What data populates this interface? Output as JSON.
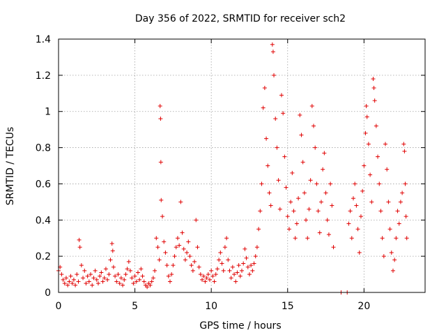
{
  "chart_data": {
    "type": "scatter",
    "title": "Day 356 of 2022, SRMTID for receiver sch2",
    "xlabel": "GPS time / hours",
    "ylabel": "SRMTID / TECUs",
    "xlim": [
      0,
      24
    ],
    "ylim": [
      0,
      1.4
    ],
    "xticks": [
      0,
      5,
      10,
      15,
      20
    ],
    "xtick_labels": [
      "0",
      "5",
      "10",
      "15",
      "20"
    ],
    "yticks": [
      0,
      0.2,
      0.4,
      0.6,
      0.8,
      1,
      1.2,
      1.4
    ],
    "ytick_labels": [
      "0",
      "0.2",
      "0.4",
      "0.6",
      "0.8",
      "1",
      "1.2",
      "1.4"
    ],
    "grid": true,
    "marker": "+",
    "color": "#e00000",
    "series": [
      {
        "name": "sch2",
        "points": [
          [
            0.0,
            0.12
          ],
          [
            0.1,
            0.14
          ],
          [
            0.2,
            0.1
          ],
          [
            0.3,
            0.07
          ],
          [
            0.4,
            0.05
          ],
          [
            0.5,
            0.08
          ],
          [
            0.6,
            0.04
          ],
          [
            0.7,
            0.06
          ],
          [
            0.8,
            0.09
          ],
          [
            0.9,
            0.05
          ],
          [
            1.0,
            0.07
          ],
          [
            1.1,
            0.04
          ],
          [
            1.2,
            0.1
          ],
          [
            1.3,
            0.06
          ],
          [
            1.35,
            0.29
          ],
          [
            1.4,
            0.25
          ],
          [
            1.5,
            0.15
          ],
          [
            1.6,
            0.08
          ],
          [
            1.7,
            0.12
          ],
          [
            1.8,
            0.05
          ],
          [
            1.9,
            0.09
          ],
          [
            2.0,
            0.06
          ],
          [
            2.1,
            0.1
          ],
          [
            2.2,
            0.04
          ],
          [
            2.3,
            0.08
          ],
          [
            2.4,
            0.12
          ],
          [
            2.5,
            0.07
          ],
          [
            2.6,
            0.05
          ],
          [
            2.7,
            0.09
          ],
          [
            2.8,
            0.11
          ],
          [
            2.9,
            0.06
          ],
          [
            3.0,
            0.08
          ],
          [
            3.1,
            0.13
          ],
          [
            3.2,
            0.07
          ],
          [
            3.3,
            0.1
          ],
          [
            3.4,
            0.18
          ],
          [
            3.5,
            0.27
          ],
          [
            3.55,
            0.23
          ],
          [
            3.6,
            0.14
          ],
          [
            3.7,
            0.09
          ],
          [
            3.8,
            0.06
          ],
          [
            3.9,
            0.1
          ],
          [
            4.0,
            0.05
          ],
          [
            4.1,
            0.08
          ],
          [
            4.2,
            0.04
          ],
          [
            4.3,
            0.07
          ],
          [
            4.4,
            0.1
          ],
          [
            4.5,
            0.13
          ],
          [
            4.6,
            0.17
          ],
          [
            4.7,
            0.12
          ],
          [
            4.8,
            0.08
          ],
          [
            4.9,
            0.05
          ],
          [
            5.0,
            0.09
          ],
          [
            5.1,
            0.06
          ],
          [
            5.2,
            0.11
          ],
          [
            5.3,
            0.07
          ],
          [
            5.4,
            0.13
          ],
          [
            5.5,
            0.09
          ],
          [
            5.6,
            0.06
          ],
          [
            5.7,
            0.04
          ],
          [
            5.8,
            0.03
          ],
          [
            5.9,
            0.05
          ],
          [
            6.0,
            0.04
          ],
          [
            6.1,
            0.06
          ],
          [
            6.2,
            0.08
          ],
          [
            6.3,
            0.12
          ],
          [
            6.4,
            0.3
          ],
          [
            6.5,
            0.25
          ],
          [
            6.6,
            0.18
          ],
          [
            6.65,
            1.03
          ],
          [
            6.68,
            0.96
          ],
          [
            6.7,
            0.72
          ],
          [
            6.72,
            0.51
          ],
          [
            6.8,
            0.42
          ],
          [
            6.9,
            0.28
          ],
          [
            7.0,
            0.22
          ],
          [
            7.1,
            0.15
          ],
          [
            7.2,
            0.09
          ],
          [
            7.3,
            0.06
          ],
          [
            7.4,
            0.1
          ],
          [
            7.5,
            0.15
          ],
          [
            7.6,
            0.2
          ],
          [
            7.7,
            0.25
          ],
          [
            7.8,
            0.3
          ],
          [
            7.9,
            0.26
          ],
          [
            8.0,
            0.5
          ],
          [
            8.1,
            0.33
          ],
          [
            8.2,
            0.24
          ],
          [
            8.3,
            0.18
          ],
          [
            8.4,
            0.22
          ],
          [
            8.5,
            0.28
          ],
          [
            8.6,
            0.2
          ],
          [
            8.7,
            0.15
          ],
          [
            8.8,
            0.12
          ],
          [
            8.9,
            0.17
          ],
          [
            9.0,
            0.4
          ],
          [
            9.1,
            0.25
          ],
          [
            9.2,
            0.14
          ],
          [
            9.3,
            0.1
          ],
          [
            9.4,
            0.07
          ],
          [
            9.5,
            0.09
          ],
          [
            9.6,
            0.06
          ],
          [
            9.7,
            0.08
          ],
          [
            9.8,
            0.1
          ],
          [
            9.9,
            0.07
          ],
          [
            10.0,
            0.12
          ],
          [
            10.1,
            0.09
          ],
          [
            10.2,
            0.06
          ],
          [
            10.3,
            0.1
          ],
          [
            10.4,
            0.13
          ],
          [
            10.5,
            0.18
          ],
          [
            10.6,
            0.22
          ],
          [
            10.7,
            0.16
          ],
          [
            10.8,
            0.12
          ],
          [
            10.9,
            0.25
          ],
          [
            11.0,
            0.3
          ],
          [
            11.1,
            0.18
          ],
          [
            11.2,
            0.12
          ],
          [
            11.3,
            0.08
          ],
          [
            11.4,
            0.14
          ],
          [
            11.5,
            0.1
          ],
          [
            11.6,
            0.06
          ],
          [
            11.7,
            0.11
          ],
          [
            11.8,
            0.15
          ],
          [
            11.9,
            0.09
          ],
          [
            12.0,
            0.12
          ],
          [
            12.1,
            0.16
          ],
          [
            12.2,
            0.24
          ],
          [
            12.3,
            0.19
          ],
          [
            12.4,
            0.14
          ],
          [
            12.5,
            0.1
          ],
          [
            12.6,
            0.15
          ],
          [
            12.7,
            0.12
          ],
          [
            12.8,
            0.16
          ],
          [
            12.9,
            0.2
          ],
          [
            13.0,
            0.25
          ],
          [
            13.1,
            0.35
          ],
          [
            13.2,
            0.45
          ],
          [
            13.3,
            0.6
          ],
          [
            13.4,
            1.02
          ],
          [
            13.5,
            1.13
          ],
          [
            13.6,
            0.85
          ],
          [
            13.7,
            0.7
          ],
          [
            13.8,
            0.55
          ],
          [
            13.9,
            0.48
          ],
          [
            14.0,
            1.37
          ],
          [
            14.05,
            1.33
          ],
          [
            14.1,
            1.2
          ],
          [
            14.2,
            0.96
          ],
          [
            14.3,
            0.8
          ],
          [
            14.4,
            0.62
          ],
          [
            14.5,
            0.46
          ],
          [
            14.6,
            1.09
          ],
          [
            14.7,
            0.99
          ],
          [
            14.8,
            0.75
          ],
          [
            14.9,
            0.58
          ],
          [
            15.0,
            0.42
          ],
          [
            15.1,
            0.35
          ],
          [
            15.2,
            0.5
          ],
          [
            15.3,
            0.66
          ],
          [
            15.4,
            0.45
          ],
          [
            15.5,
            0.3
          ],
          [
            15.6,
            0.38
          ],
          [
            15.7,
            0.52
          ],
          [
            15.8,
            0.98
          ],
          [
            15.9,
            0.87
          ],
          [
            16.0,
            0.72
          ],
          [
            16.1,
            0.55
          ],
          [
            16.2,
            0.4
          ],
          [
            16.3,
            0.3
          ],
          [
            16.4,
            0.46
          ],
          [
            16.5,
            0.62
          ],
          [
            16.6,
            1.03
          ],
          [
            16.7,
            0.92
          ],
          [
            16.8,
            0.8
          ],
          [
            16.9,
            0.6
          ],
          [
            17.0,
            0.45
          ],
          [
            17.1,
            0.33
          ],
          [
            17.2,
            0.5
          ],
          [
            17.3,
            0.68
          ],
          [
            17.4,
            0.77
          ],
          [
            17.5,
            0.55
          ],
          [
            17.6,
            0.4
          ],
          [
            17.7,
            0.32
          ],
          [
            17.8,
            0.6
          ],
          [
            17.9,
            0.48
          ],
          [
            18.0,
            0.25
          ],
          [
            18.5,
            0.0
          ],
          [
            18.9,
            0.0
          ],
          [
            19.0,
            0.38
          ],
          [
            19.1,
            0.45
          ],
          [
            19.2,
            0.3
          ],
          [
            19.3,
            0.52
          ],
          [
            19.4,
            0.6
          ],
          [
            19.5,
            0.48
          ],
          [
            19.6,
            0.35
          ],
          [
            19.7,
            0.22
          ],
          [
            19.8,
            0.42
          ],
          [
            19.9,
            0.56
          ],
          [
            20.0,
            0.7
          ],
          [
            20.1,
            0.88
          ],
          [
            20.15,
            1.03
          ],
          [
            20.2,
            0.97
          ],
          [
            20.3,
            0.82
          ],
          [
            20.4,
            0.65
          ],
          [
            20.5,
            0.5
          ],
          [
            20.6,
            1.18
          ],
          [
            20.65,
            1.13
          ],
          [
            20.7,
            1.06
          ],
          [
            20.8,
            0.92
          ],
          [
            20.9,
            0.75
          ],
          [
            21.0,
            0.6
          ],
          [
            21.1,
            0.45
          ],
          [
            21.2,
            0.3
          ],
          [
            21.3,
            0.2
          ],
          [
            21.4,
            0.82
          ],
          [
            21.5,
            0.68
          ],
          [
            21.6,
            0.5
          ],
          [
            21.7,
            0.35
          ],
          [
            21.8,
            0.22
          ],
          [
            21.9,
            0.12
          ],
          [
            22.0,
            0.18
          ],
          [
            22.1,
            0.3
          ],
          [
            22.2,
            0.45
          ],
          [
            22.3,
            0.38
          ],
          [
            22.4,
            0.5
          ],
          [
            22.5,
            0.55
          ],
          [
            22.6,
            0.82
          ],
          [
            22.65,
            0.78
          ],
          [
            22.7,
            0.6
          ],
          [
            22.75,
            0.42
          ],
          [
            22.8,
            0.3
          ]
        ]
      }
    ]
  }
}
